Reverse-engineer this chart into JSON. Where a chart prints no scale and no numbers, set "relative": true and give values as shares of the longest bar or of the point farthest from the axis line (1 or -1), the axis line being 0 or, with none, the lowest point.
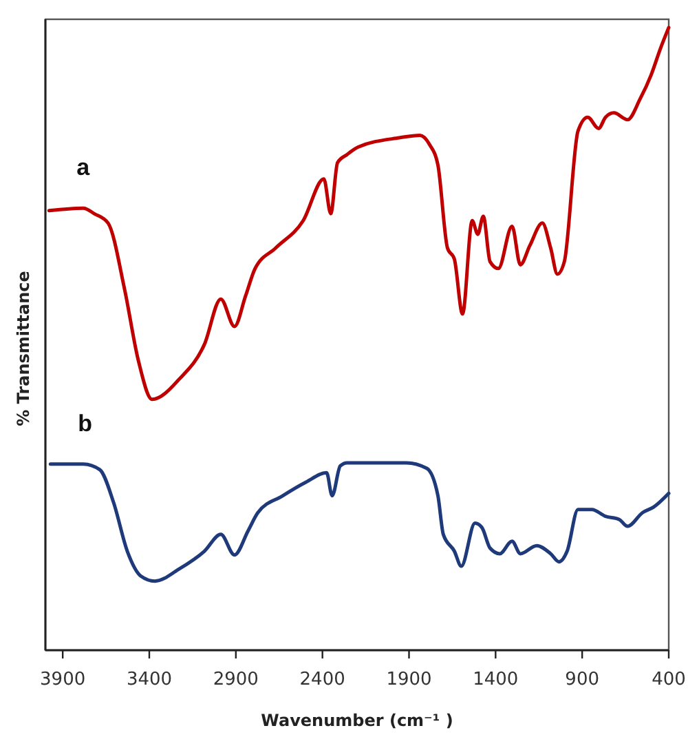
{
  "chart_data": {
    "type": "line",
    "relative": true,
    "xlabel": "Wavenumber (cm⁻¹ )",
    "ylabel": "% Transmittance",
    "xlim": [
      4000,
      400
    ],
    "xticks": [
      3900,
      3400,
      2900,
      2400,
      1900,
      1400,
      900,
      400
    ],
    "series": [
      {
        "name": "a",
        "color": "#c00000",
        "x": [
          3979,
          3781,
          3717,
          3638,
          3543,
          3463,
          3384,
          3225,
          3082,
          2987,
          2908,
          2844,
          2789,
          2670,
          2511,
          2392,
          2352,
          2313,
          2258,
          2194,
          1956,
          1837,
          1781,
          1733,
          1678,
          1638,
          1591,
          1535,
          1503,
          1471,
          1432,
          1384,
          1305,
          1257,
          1202,
          1130,
          1082,
          1043,
          1003,
          924,
          868,
          805,
          765,
          717,
          638,
          566,
          503,
          447,
          400
        ],
        "values": [
          0.706,
          0.71,
          0.701,
          0.686,
          0.58,
          0.465,
          0.403,
          0.436,
          0.491,
          0.564,
          0.52,
          0.569,
          0.613,
          0.646,
          0.69,
          0.757,
          0.701,
          0.783,
          0.796,
          0.808,
          0.823,
          0.827,
          0.812,
          0.779,
          0.646,
          0.628,
          0.54,
          0.69,
          0.668,
          0.697,
          0.624,
          0.613,
          0.681,
          0.619,
          0.65,
          0.686,
          0.646,
          0.604,
          0.624,
          0.834,
          0.856,
          0.838,
          0.856,
          0.863,
          0.852,
          0.885,
          0.923,
          0.967,
          1.0
        ]
      },
      {
        "name": "b",
        "color": "#1f3a7a",
        "x": [
          3971,
          3781,
          3686,
          3606,
          3527,
          3448,
          3368,
          3225,
          3082,
          2987,
          2908,
          2829,
          2773,
          2630,
          2495,
          2376,
          2344,
          2297,
          2258,
          1916,
          1797,
          1733,
          1702,
          1638,
          1598,
          1519,
          1479,
          1432,
          1376,
          1305,
          1257,
          1162,
          1082,
          1034,
          987,
          924,
          844,
          765,
          686,
          638,
          551,
          487,
          400
        ],
        "values": [
          0.299,
          0.299,
          0.29,
          0.237,
          0.159,
          0.119,
          0.111,
          0.131,
          0.159,
          0.186,
          0.153,
          0.192,
          0.221,
          0.248,
          0.27,
          0.285,
          0.248,
          0.296,
          0.301,
          0.301,
          0.292,
          0.248,
          0.186,
          0.159,
          0.135,
          0.204,
          0.197,
          0.164,
          0.155,
          0.175,
          0.155,
          0.168,
          0.155,
          0.142,
          0.159,
          0.226,
          0.226,
          0.215,
          0.21,
          0.199,
          0.221,
          0.23,
          0.252
        ]
      }
    ]
  }
}
